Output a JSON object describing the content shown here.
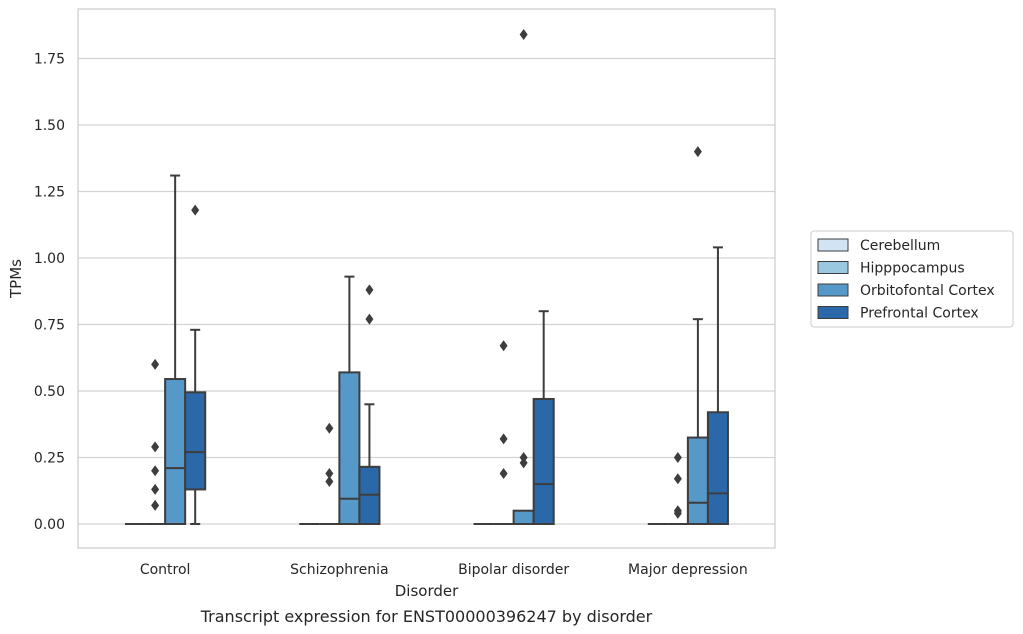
{
  "chart_data": {
    "type": "box",
    "caption": "Transcript expression for ENST00000396247 by disorder",
    "xlabel": "Disorder",
    "ylabel": "TPMs",
    "ylim": [
      -0.07,
      1.94
    ],
    "yticks": [
      0.0,
      0.25,
      0.5,
      0.75,
      1.0,
      1.25,
      1.5,
      1.75
    ],
    "ytick_labels": [
      "0.00",
      "0.25",
      "0.50",
      "0.75",
      "1.00",
      "1.25",
      "1.50",
      "1.75"
    ],
    "grid": "horizontal",
    "legend_position": "right",
    "categories": [
      "Control",
      "Schizophrenia",
      "Bipolar disorder",
      "Major depression"
    ],
    "series": [
      {
        "name": "Cerebellum",
        "color": "#d2e3f3",
        "boxes": [
          {
            "q1": 0,
            "median": 0,
            "q3": 0,
            "low": 0,
            "high": 0,
            "outliers": []
          },
          {
            "q1": 0,
            "median": 0,
            "q3": 0,
            "low": 0,
            "high": 0,
            "outliers": []
          },
          {
            "q1": 0,
            "median": 0,
            "q3": 0,
            "low": 0,
            "high": 0,
            "outliers": []
          },
          {
            "q1": 0,
            "median": 0,
            "q3": 0,
            "low": 0,
            "high": 0,
            "outliers": []
          }
        ]
      },
      {
        "name": "Hipppocampus",
        "color": "#9ac8e0",
        "boxes": [
          {
            "q1": 0,
            "median": 0,
            "q3": 0,
            "low": 0,
            "high": 0,
            "outliers": [
              0.2,
              0.13,
              0.6,
              0.29,
              0.07
            ]
          },
          {
            "q1": 0,
            "median": 0,
            "q3": 0,
            "low": 0,
            "high": 0,
            "outliers": [
              0.36,
              0.16,
              0.19
            ]
          },
          {
            "q1": 0,
            "median": 0,
            "q3": 0,
            "low": 0,
            "high": 0,
            "outliers": [
              0.67,
              0.32,
              0.19
            ]
          },
          {
            "q1": 0,
            "median": 0,
            "q3": 0,
            "low": 0,
            "high": 0,
            "outliers": [
              0.17,
              0.05,
              0.04,
              0.25
            ]
          }
        ]
      },
      {
        "name": "Orbitofontal Cortex",
        "color": "#5698c8",
        "boxes": [
          {
            "q1": 0,
            "median": 0.21,
            "q3": 0.545,
            "low": 0,
            "high": 1.31,
            "outliers": []
          },
          {
            "q1": 0,
            "median": 0.095,
            "q3": 0.57,
            "low": 0,
            "high": 0.93,
            "outliers": []
          },
          {
            "q1": 0,
            "median": 0,
            "q3": 0.05,
            "low": 0,
            "high": 0.05,
            "outliers": [
              0.25,
              0.23,
              1.84
            ]
          },
          {
            "q1": 0,
            "median": 0.08,
            "q3": 0.325,
            "low": 0,
            "high": 0.77,
            "outliers": [
              1.4
            ]
          }
        ]
      },
      {
        "name": "Prefrontal Cortex",
        "color": "#2a68a9",
        "boxes": [
          {
            "q1": 0.13,
            "median": 0.27,
            "q3": 0.495,
            "low": 0,
            "high": 0.73,
            "outliers": [
              1.18
            ]
          },
          {
            "q1": 0,
            "median": 0.11,
            "q3": 0.215,
            "low": 0,
            "high": 0.45,
            "outliers": [
              0.88,
              0.77
            ]
          },
          {
            "q1": 0,
            "median": 0.15,
            "q3": 0.47,
            "low": 0,
            "high": 0.8,
            "outliers": []
          },
          {
            "q1": 0,
            "median": 0.115,
            "q3": 0.42,
            "low": 0,
            "high": 1.04,
            "outliers": []
          }
        ]
      }
    ]
  }
}
